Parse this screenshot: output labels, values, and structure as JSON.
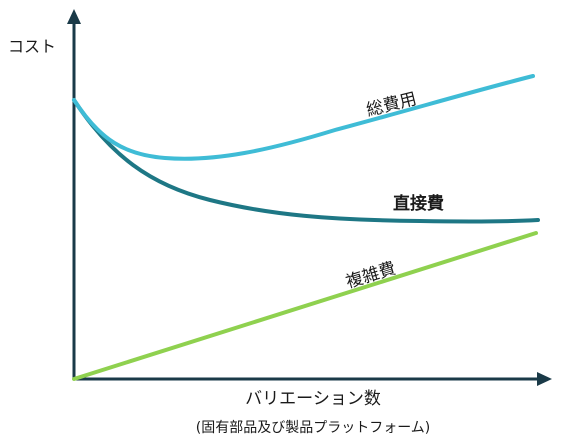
{
  "diagram": {
    "y_axis_label": "コスト",
    "x_axis_label": "バリエーション数",
    "x_axis_sublabel": "(固有部品及び製品プラットフォーム)",
    "curves": [
      {
        "key": "total",
        "label": "総費用",
        "color": "#3fbcd6"
      },
      {
        "key": "direct",
        "label": "直接費",
        "color": "#1e7785"
      },
      {
        "key": "complexity",
        "label": "複雑費",
        "color": "#8fd14f"
      }
    ],
    "axis_color": "#1a3a48"
  }
}
